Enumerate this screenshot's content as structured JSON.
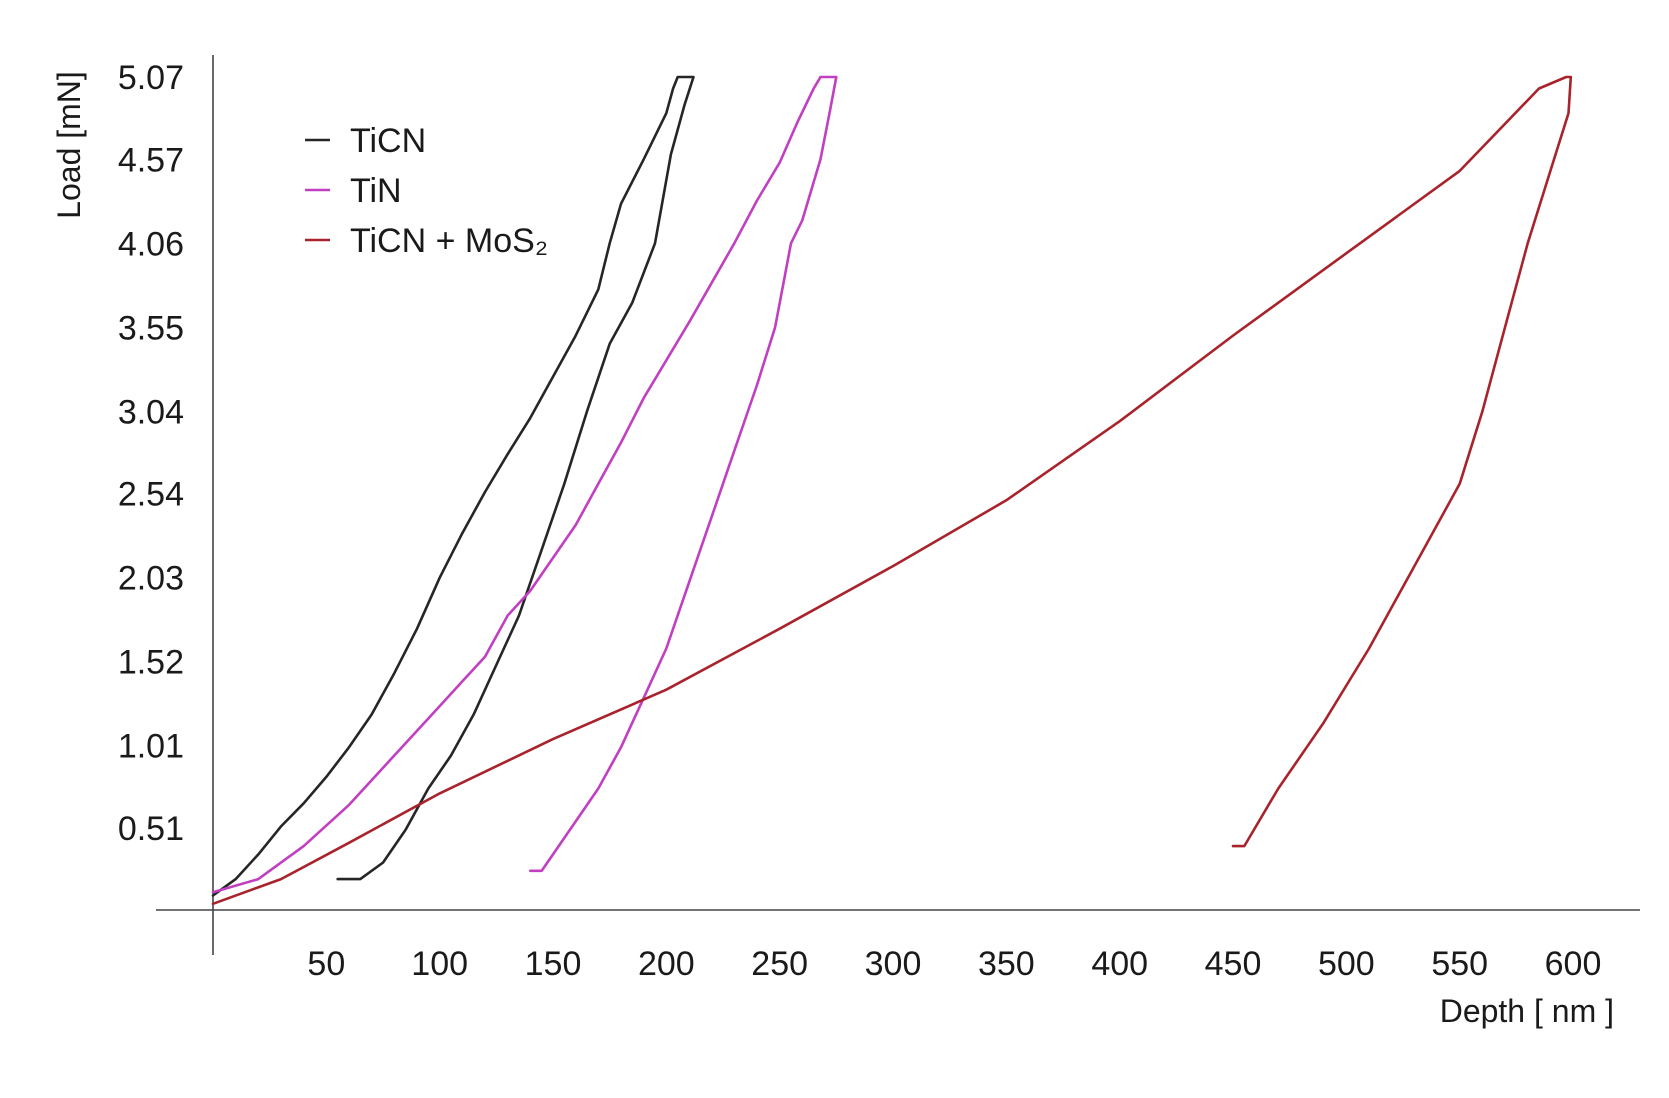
{
  "chart_data": {
    "type": "line",
    "title": "",
    "xlabel": "Depth [ nm ]",
    "ylabel": "Load [mN]",
    "xlim": [
      0,
      625
    ],
    "ylim": [
      0,
      5.07
    ],
    "x_ticks": [
      50,
      100,
      150,
      200,
      250,
      300,
      350,
      400,
      450,
      500,
      550,
      600
    ],
    "y_ticks": [
      0.51,
      1.01,
      1.52,
      2.03,
      2.54,
      3.04,
      3.55,
      4.06,
      4.57,
      5.07
    ],
    "grid": false,
    "legend_position": "top-left",
    "series": [
      {
        "name": "TiCN",
        "color": "#262626",
        "loading": [
          [
            0,
            0.1
          ],
          [
            10,
            0.2
          ],
          [
            20,
            0.35
          ],
          [
            30,
            0.52
          ],
          [
            40,
            0.66
          ],
          [
            50,
            0.82
          ],
          [
            60,
            1.0
          ],
          [
            70,
            1.2
          ],
          [
            80,
            1.45
          ],
          [
            90,
            1.72
          ],
          [
            100,
            2.03
          ],
          [
            110,
            2.3
          ],
          [
            120,
            2.55
          ],
          [
            130,
            2.78
          ],
          [
            140,
            3.0
          ],
          [
            150,
            3.25
          ],
          [
            160,
            3.5
          ],
          [
            170,
            3.78
          ],
          [
            175,
            4.06
          ],
          [
            180,
            4.3
          ],
          [
            190,
            4.57
          ],
          [
            200,
            4.85
          ],
          [
            203,
            5.0
          ],
          [
            205,
            5.07
          ]
        ],
        "unloading": [
          [
            212,
            5.07
          ],
          [
            208,
            4.9
          ],
          [
            202,
            4.6
          ],
          [
            195,
            4.06
          ],
          [
            185,
            3.7
          ],
          [
            175,
            3.45
          ],
          [
            165,
            3.04
          ],
          [
            155,
            2.6
          ],
          [
            145,
            2.2
          ],
          [
            135,
            1.8
          ],
          [
            125,
            1.5
          ],
          [
            115,
            1.2
          ],
          [
            105,
            0.95
          ],
          [
            95,
            0.75
          ],
          [
            85,
            0.5
          ],
          [
            75,
            0.3
          ],
          [
            65,
            0.2
          ],
          [
            55,
            0.2
          ]
        ]
      },
      {
        "name": "TiN",
        "color": "#c13fc1",
        "loading": [
          [
            0,
            0.12
          ],
          [
            20,
            0.2
          ],
          [
            40,
            0.4
          ],
          [
            60,
            0.65
          ],
          [
            80,
            0.95
          ],
          [
            100,
            1.25
          ],
          [
            110,
            1.4
          ],
          [
            120,
            1.55
          ],
          [
            130,
            1.8
          ],
          [
            140,
            1.95
          ],
          [
            150,
            2.15
          ],
          [
            160,
            2.35
          ],
          [
            170,
            2.6
          ],
          [
            180,
            2.85
          ],
          [
            190,
            3.12
          ],
          [
            200,
            3.35
          ],
          [
            210,
            3.58
          ],
          [
            220,
            3.82
          ],
          [
            230,
            4.06
          ],
          [
            240,
            4.32
          ],
          [
            250,
            4.55
          ],
          [
            258,
            4.8
          ],
          [
            265,
            5.0
          ],
          [
            268,
            5.07
          ]
        ],
        "unloading": [
          [
            275,
            5.07
          ],
          [
            272,
            4.85
          ],
          [
            268,
            4.57
          ],
          [
            260,
            4.2
          ],
          [
            255,
            4.06
          ],
          [
            248,
            3.55
          ],
          [
            240,
            3.2
          ],
          [
            230,
            2.8
          ],
          [
            220,
            2.4
          ],
          [
            210,
            2.0
          ],
          [
            200,
            1.6
          ],
          [
            190,
            1.3
          ],
          [
            180,
            1.0
          ],
          [
            170,
            0.75
          ],
          [
            160,
            0.55
          ],
          [
            150,
            0.35
          ],
          [
            145,
            0.25
          ],
          [
            140,
            0.25
          ]
        ]
      },
      {
        "name": "TiCN + MoS₂",
        "color": "#a8232b",
        "loading": [
          [
            0,
            0.05
          ],
          [
            30,
            0.2
          ],
          [
            60,
            0.42
          ],
          [
            100,
            0.72
          ],
          [
            150,
            1.05
          ],
          [
            200,
            1.35
          ],
          [
            250,
            1.72
          ],
          [
            300,
            2.1
          ],
          [
            350,
            2.5
          ],
          [
            400,
            2.98
          ],
          [
            450,
            3.5
          ],
          [
            500,
            4.0
          ],
          [
            550,
            4.5
          ],
          [
            585,
            5.0
          ],
          [
            597,
            5.07
          ]
        ],
        "unloading": [
          [
            599,
            5.07
          ],
          [
            598,
            4.85
          ],
          [
            590,
            4.5
          ],
          [
            580,
            4.06
          ],
          [
            570,
            3.55
          ],
          [
            560,
            3.04
          ],
          [
            550,
            2.6
          ],
          [
            530,
            2.1
          ],
          [
            510,
            1.6
          ],
          [
            490,
            1.15
          ],
          [
            470,
            0.75
          ],
          [
            455,
            0.4
          ],
          [
            450,
            0.4
          ]
        ]
      }
    ]
  }
}
